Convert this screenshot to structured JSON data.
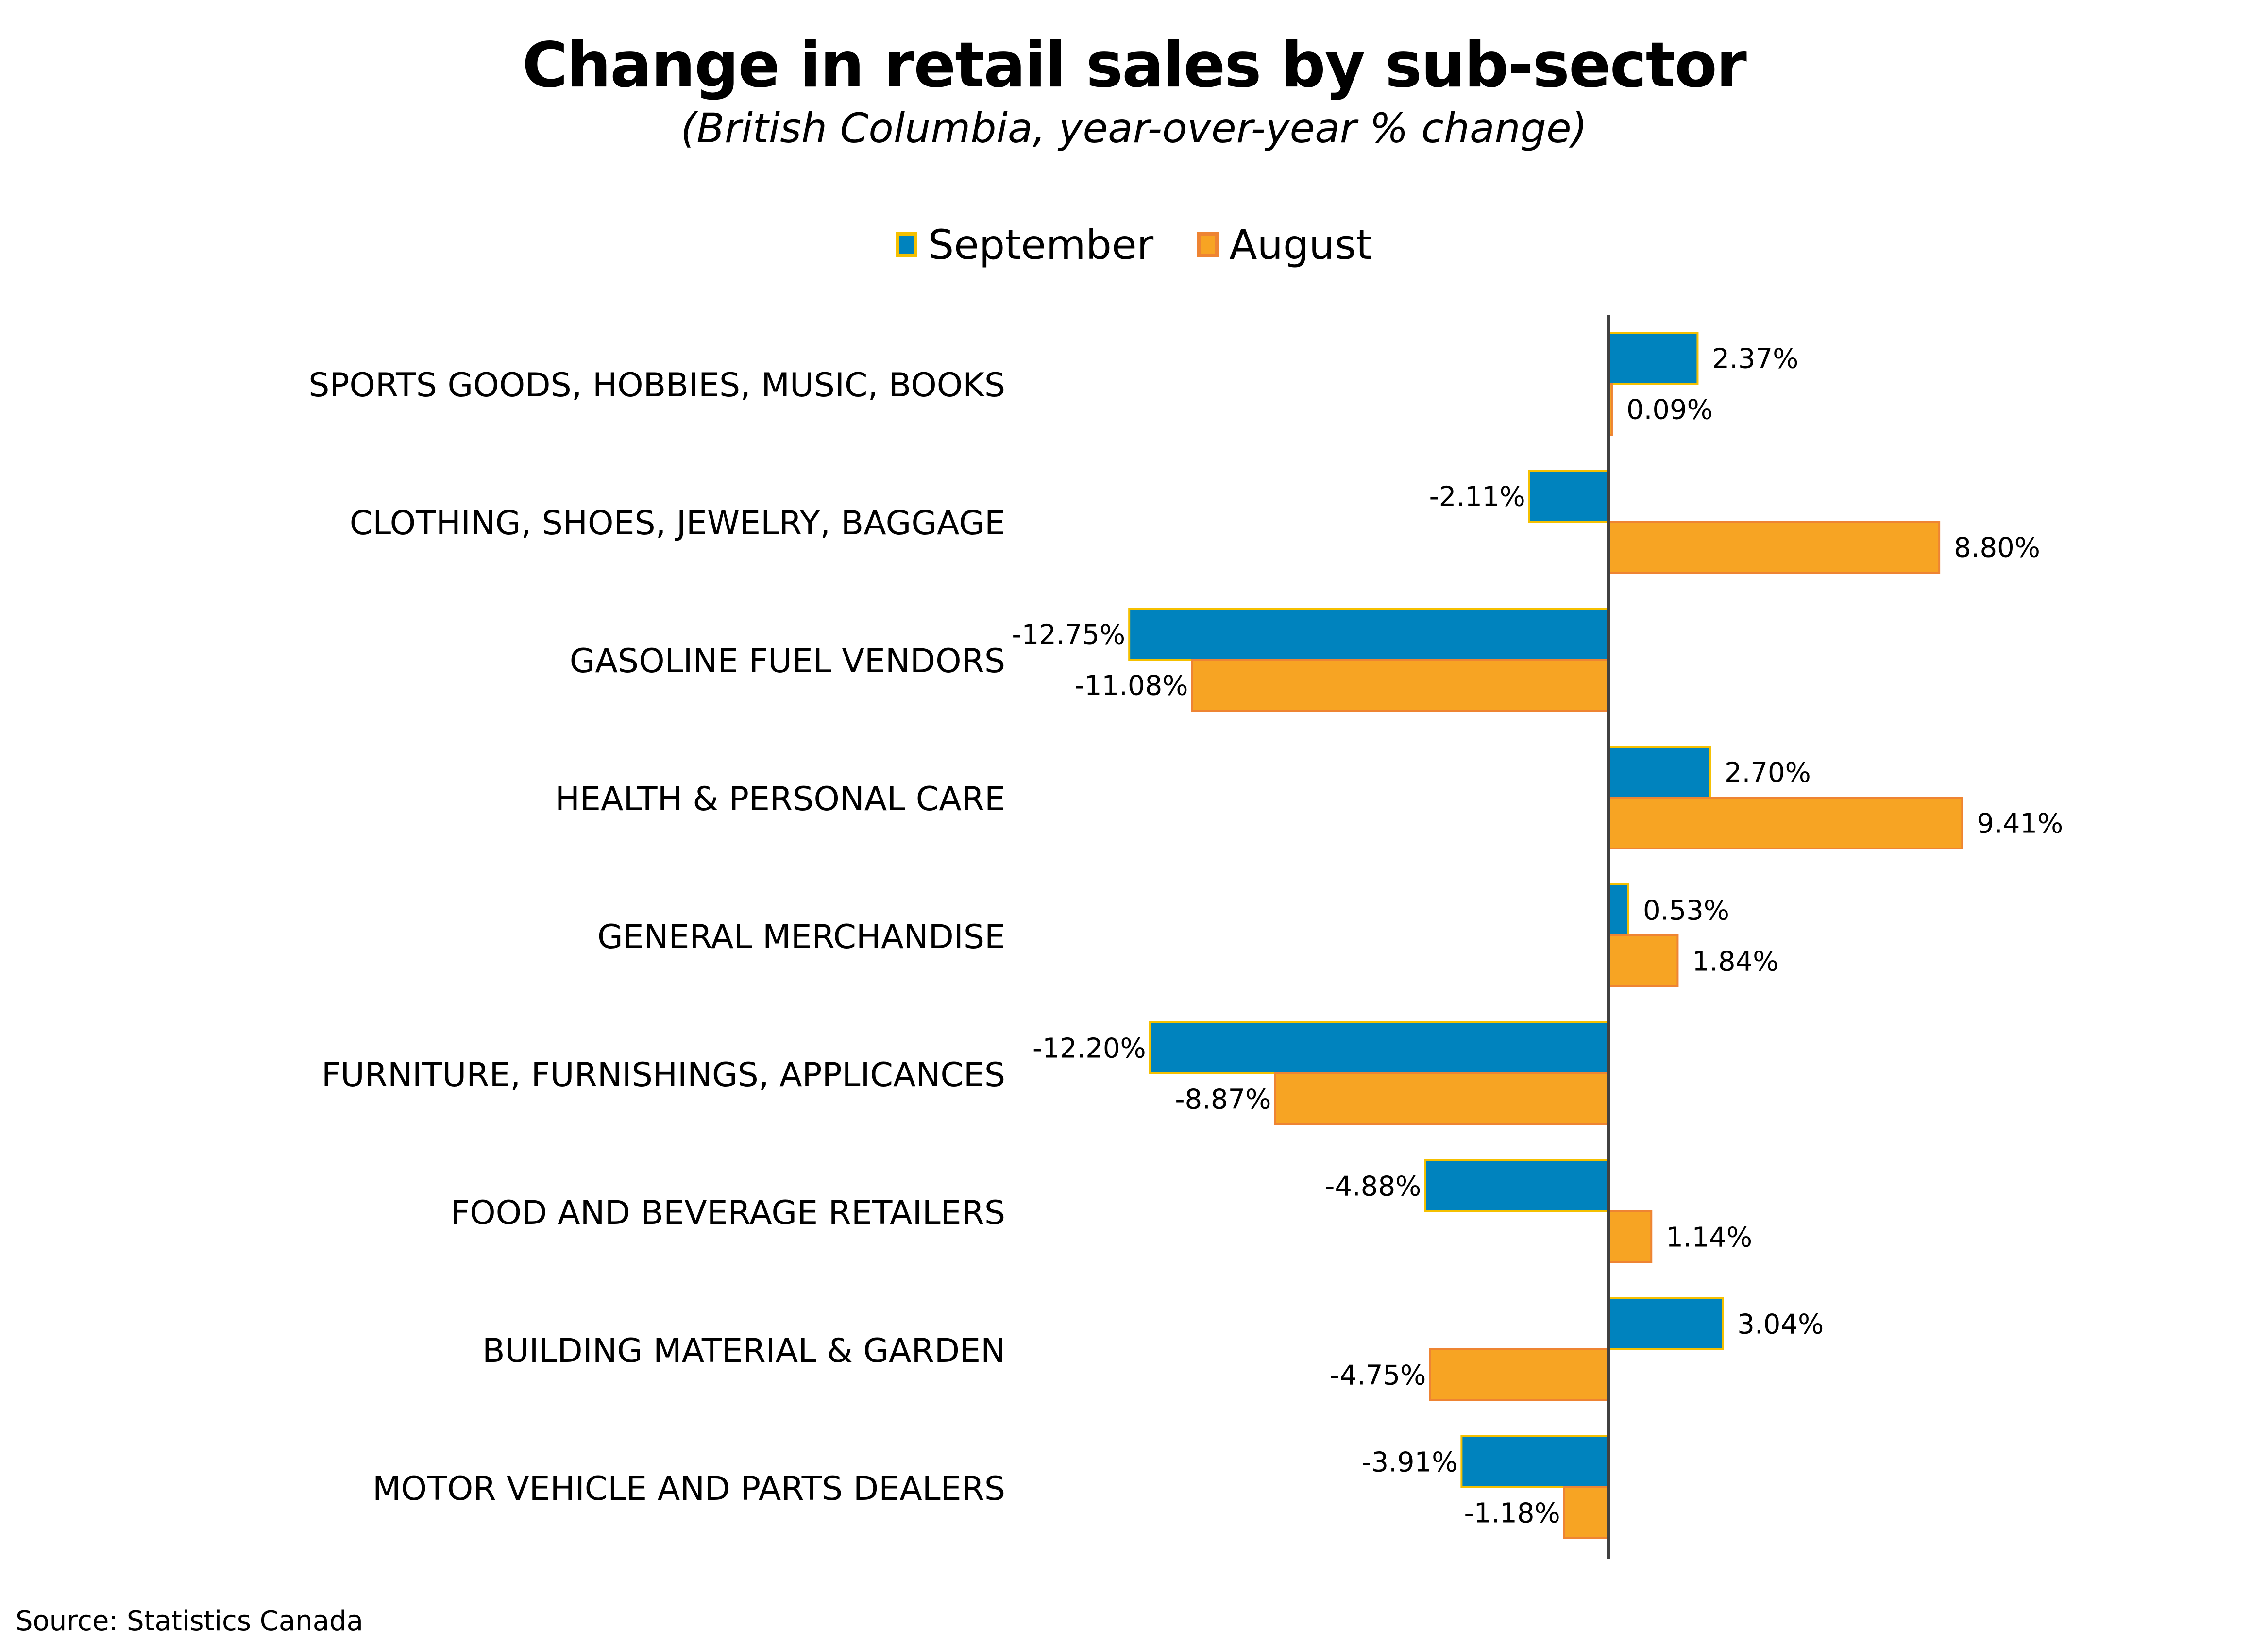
{
  "title": "Change in retail sales by sub-sector",
  "subtitle": "(British Columbia, year-over-year % change)",
  "source": "Source: Statistics Canada",
  "colors": {
    "september_fill": "#0083BE",
    "september_border": "#F5C000",
    "august_fill": "#F7A423",
    "august_border": "#EE8433",
    "axis": "#404040"
  },
  "legend": [
    {
      "label": "September",
      "series": "september"
    },
    {
      "label": "August",
      "series": "august"
    }
  ],
  "chart_data": {
    "type": "bar",
    "orientation": "horizontal",
    "title": "Change in retail sales by sub-sector",
    "subtitle": "(British Columbia, year-over-year % change)",
    "xlabel": "",
    "ylabel": "",
    "unit": "%",
    "xlim": [
      -14,
      14
    ],
    "grid": false,
    "legend_position": "top-center",
    "categories": [
      "SPORTS GOODS, HOBBIES, MUSIC, BOOKS",
      "CLOTHING, SHOES, JEWELRY, BAGGAGE",
      "GASOLINE FUEL VENDORS",
      "HEALTH & PERSONAL CARE",
      "GENERAL MERCHANDISE",
      "FURNITURE, FURNISHINGS, APPLICANCES",
      "FOOD AND BEVERAGE RETAILERS",
      "BUILDING MATERIAL & GARDEN",
      "MOTOR VEHICLE AND PARTS DEALERS"
    ],
    "series": [
      {
        "name": "September",
        "values": [
          2.37,
          -2.11,
          -12.75,
          2.7,
          0.53,
          -12.2,
          -4.88,
          3.04,
          -3.91
        ],
        "labels": [
          "2.37%",
          "-2.11%",
          "-12.75%",
          "2.70%",
          "0.53%",
          "-12.20%",
          "-4.88%",
          "3.04%",
          "-3.91%"
        ]
      },
      {
        "name": "August",
        "values": [
          0.09,
          8.8,
          -11.08,
          9.41,
          1.84,
          -8.87,
          1.14,
          -4.75,
          -1.18
        ],
        "labels": [
          "0.09%",
          "8.80%",
          "-11.08%",
          "9.41%",
          "1.84%",
          "-8.87%",
          "1.14%",
          "-4.75%",
          "-1.18%"
        ]
      }
    ]
  }
}
